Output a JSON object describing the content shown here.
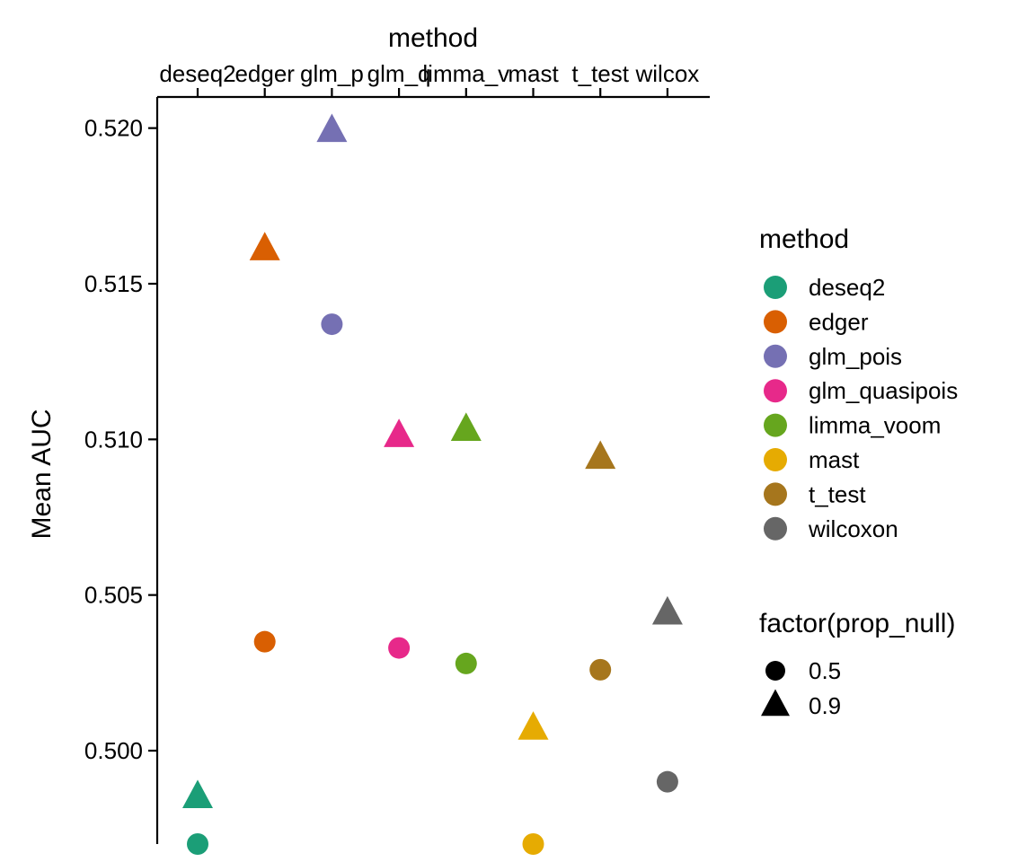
{
  "chart_data": {
    "type": "scatter",
    "xlabel": "method",
    "ylabel": "Mean AUC",
    "x_axis_position": "top",
    "categories": [
      "deseq2",
      "edger",
      "glm_p",
      "glm_q",
      "limma_v",
      "mast",
      "t_test",
      "wilcox"
    ],
    "ylim": [
      0.497,
      0.521
    ],
    "yticks": [
      "0.500",
      "0.505",
      "0.510",
      "0.515",
      "0.520"
    ],
    "ytick_values": [
      0.5,
      0.505,
      0.51,
      0.515,
      0.52
    ],
    "grid": false,
    "series": [
      {
        "name": "deseq2",
        "color": "#1B9E77",
        "values": [
          {
            "x": "deseq2",
            "y": 0.497,
            "prop_null": "0.5"
          },
          {
            "x": "deseq2",
            "y": 0.4985,
            "prop_null": "0.9"
          }
        ]
      },
      {
        "name": "edger",
        "color": "#D95F02",
        "values": [
          {
            "x": "edger",
            "y": 0.5035,
            "prop_null": "0.5"
          },
          {
            "x": "edger",
            "y": 0.5161,
            "prop_null": "0.9"
          }
        ]
      },
      {
        "name": "glm_pois",
        "color": "#7570B3",
        "values": [
          {
            "x": "glm_p",
            "y": 0.5137,
            "prop_null": "0.5"
          },
          {
            "x": "glm_p",
            "y": 0.5199,
            "prop_null": "0.9"
          }
        ]
      },
      {
        "name": "glm_quasipois",
        "color": "#E7298A",
        "values": [
          {
            "x": "glm_q",
            "y": 0.5033,
            "prop_null": "0.5"
          },
          {
            "x": "glm_q",
            "y": 0.5101,
            "prop_null": "0.9"
          }
        ]
      },
      {
        "name": "limma_voom",
        "color": "#66A61E",
        "values": [
          {
            "x": "limma_v",
            "y": 0.5028,
            "prop_null": "0.5"
          },
          {
            "x": "limma_v",
            "y": 0.5103,
            "prop_null": "0.9"
          }
        ]
      },
      {
        "name": "mast",
        "color": "#E6AB02",
        "values": [
          {
            "x": "mast",
            "y": 0.497,
            "prop_null": "0.5"
          },
          {
            "x": "mast",
            "y": 0.5007,
            "prop_null": "0.9"
          }
        ]
      },
      {
        "name": "t_test",
        "color": "#A6761D",
        "values": [
          {
            "x": "t_test",
            "y": 0.5026,
            "prop_null": "0.5"
          },
          {
            "x": "t_test",
            "y": 0.5094,
            "prop_null": "0.9"
          }
        ]
      },
      {
        "name": "wilcoxon",
        "color": "#666666",
        "values": [
          {
            "x": "wilcox",
            "y": 0.499,
            "prop_null": "0.5"
          },
          {
            "x": "wilcox",
            "y": 0.5044,
            "prop_null": "0.9"
          }
        ]
      }
    ],
    "legend": {
      "placement": "right",
      "color_title": "method",
      "shape_title": "factor(prop_null)",
      "shapes": [
        {
          "label": "0.5",
          "shape": "circle"
        },
        {
          "label": "0.9",
          "shape": "triangle"
        }
      ]
    }
  }
}
